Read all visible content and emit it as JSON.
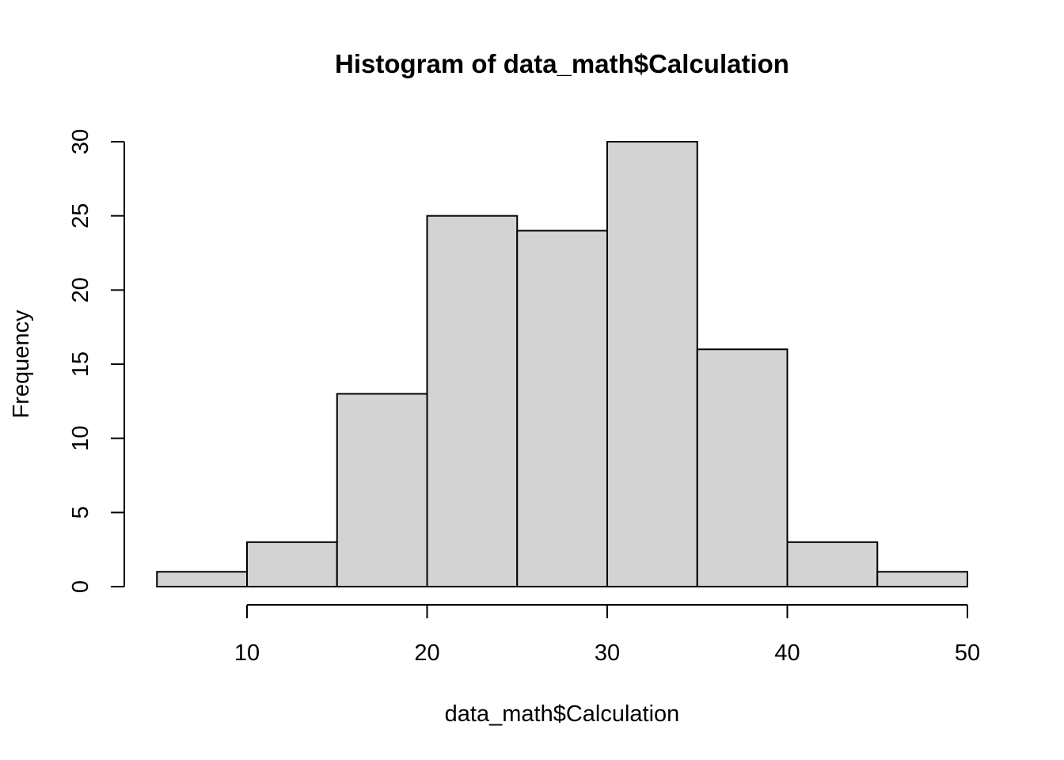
{
  "chart_data": {
    "type": "bar",
    "subtype": "histogram",
    "title": "Histogram of data_math$Calculation",
    "xlabel": "data_math$Calculation",
    "ylabel": "Frequency",
    "bin_edges": [
      5,
      10,
      15,
      20,
      25,
      30,
      35,
      40,
      45,
      50
    ],
    "values": [
      1,
      3,
      13,
      25,
      24,
      30,
      16,
      3,
      1
    ],
    "xticks": [
      10,
      20,
      30,
      40,
      50
    ],
    "yticks": [
      0,
      5,
      10,
      15,
      20,
      25,
      30
    ],
    "xlim": [
      5,
      50
    ],
    "ylim": [
      0,
      30
    ],
    "bar_color": "#d3d3d3",
    "edge_color": "#000000",
    "grid": false
  }
}
